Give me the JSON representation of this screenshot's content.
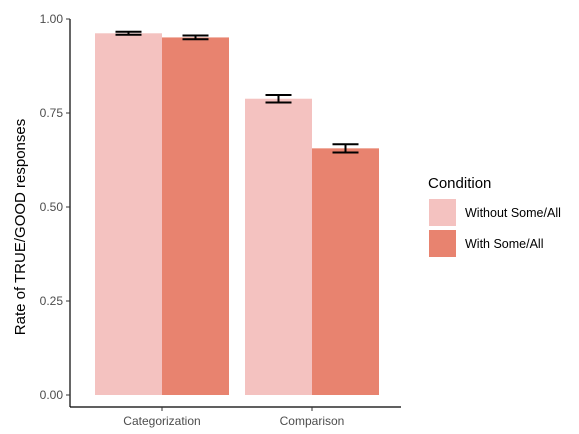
{
  "chart_data": {
    "type": "bar",
    "categories": [
      "Categorization",
      "Comparison"
    ],
    "series": [
      {
        "name": "Without Some/All",
        "values": [
          0.962,
          0.788
        ],
        "error": [
          0.004,
          0.01
        ],
        "color": "#f4c2c0"
      },
      {
        "name": "With Some/All",
        "values": [
          0.951,
          0.656
        ],
        "error": [
          0.005,
          0.011
        ],
        "color": "#e8836f"
      }
    ],
    "ylabel": "Rate of TRUE/GOOD responses",
    "xlabel": "",
    "ylim": [
      0,
      1.0
    ],
    "yticks": [
      0.0,
      0.25,
      0.5,
      0.75,
      1.0
    ],
    "ytick_labels": [
      "0.00",
      "0.25",
      "0.50",
      "0.75",
      "1.00"
    ],
    "legend": {
      "title": "Condition",
      "position": "right"
    },
    "grid": false
  }
}
